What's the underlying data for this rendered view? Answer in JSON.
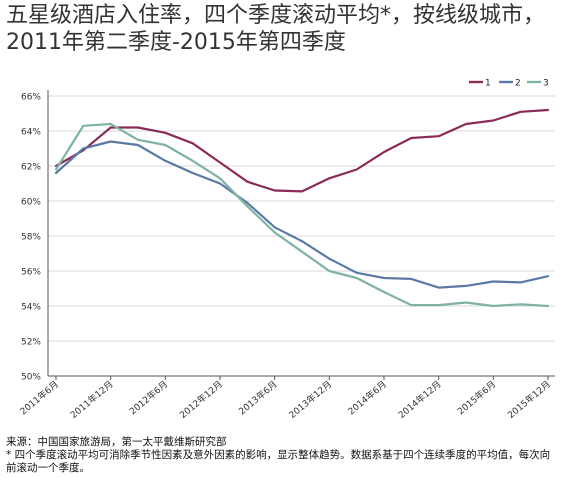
{
  "chart_data": {
    "type": "line",
    "title": "五星级酒店入住率，四个季度滚动平均*，按线级城市，2011年第二季度-2015年第四季度",
    "xlabel": "",
    "ylabel": "",
    "ylim": [
      50,
      66
    ],
    "yticks": [
      "50%",
      "52%",
      "54%",
      "56%",
      "58%",
      "60%",
      "62%",
      "64%",
      "66%"
    ],
    "ytick_values": [
      50,
      52,
      54,
      56,
      58,
      60,
      62,
      64,
      66
    ],
    "grid": true,
    "legend_position": "top-right",
    "x": [
      "2011Q2",
      "2011Q3",
      "2011Q4",
      "2012Q1",
      "2012Q2",
      "2012Q3",
      "2012Q4",
      "2013Q1",
      "2013Q2",
      "2013Q3",
      "2013Q4",
      "2014Q1",
      "2014Q2",
      "2014Q3",
      "2014Q4",
      "2015Q1",
      "2015Q2",
      "2015Q3",
      "2015Q4"
    ],
    "xtick_labels": [
      "2011年6月",
      "2011年12月",
      "2012年6月",
      "2012年12月",
      "2013年6月",
      "2013年12月",
      "2014年6月",
      "2014年12月",
      "2015年6月",
      "2015年12月"
    ],
    "xtick_positions": [
      "2011Q2",
      "2011Q4",
      "2012Q2",
      "2012Q4",
      "2013Q2",
      "2013Q4",
      "2014Q2",
      "2014Q4",
      "2015Q2",
      "2015Q4"
    ],
    "series": [
      {
        "name": "1",
        "color": "#8B2C57",
        "values": [
          62.0,
          62.9,
          64.2,
          64.2,
          63.9,
          63.3,
          62.2,
          61.1,
          60.6,
          60.55,
          61.3,
          61.8,
          62.8,
          63.6,
          63.7,
          64.4,
          64.6,
          65.1,
          65.2
        ]
      },
      {
        "name": "2",
        "color": "#5B78A6",
        "values": [
          61.6,
          63.0,
          63.4,
          63.2,
          62.3,
          61.6,
          61.0,
          59.9,
          58.5,
          57.7,
          56.7,
          55.9,
          55.6,
          55.55,
          55.05,
          55.15,
          55.4,
          55.35,
          55.7
        ]
      },
      {
        "name": "3",
        "color": "#7FB2A2",
        "values": [
          61.8,
          64.3,
          64.4,
          63.5,
          63.2,
          62.3,
          61.3,
          59.7,
          58.2,
          57.1,
          56.0,
          55.6,
          54.8,
          54.05,
          54.05,
          54.2,
          54.0,
          54.1,
          54.0
        ]
      }
    ]
  },
  "footer": {
    "source": "来源：中国国家旅游局，第一太平戴维斯研究部",
    "note": "* 四个季度滚动平均可消除季节性因素及意外因素的影响，显示整体趋势。数据系基于四个连续季度的平均值，每次向前滚动一个季度。"
  }
}
